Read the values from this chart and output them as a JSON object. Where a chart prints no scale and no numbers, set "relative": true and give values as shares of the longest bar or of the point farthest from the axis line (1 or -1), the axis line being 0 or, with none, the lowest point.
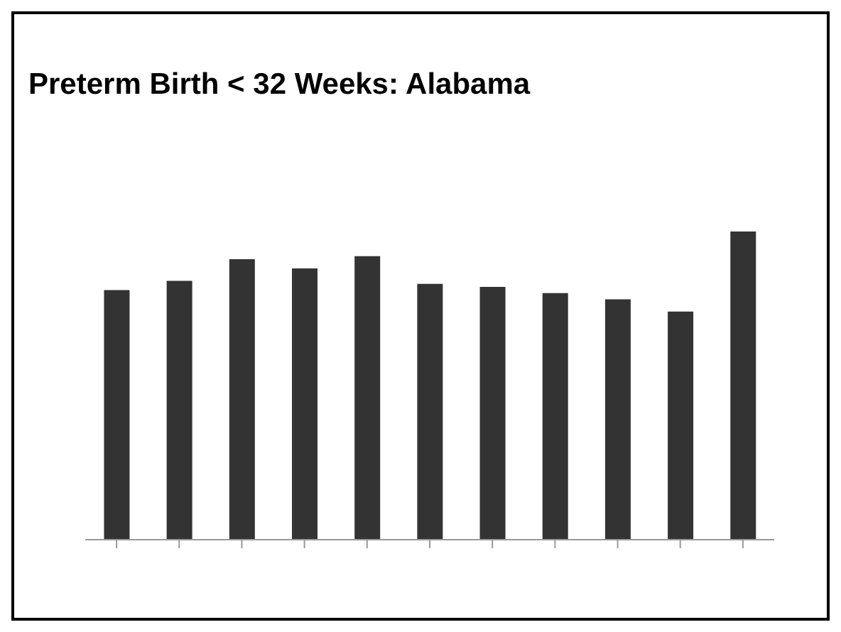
{
  "chart_data": {
    "type": "bar",
    "title": "Preterm Birth < 32 Weeks: Alabama",
    "relative": true,
    "categories": [
      null,
      null,
      null,
      null,
      null,
      null,
      null,
      null,
      null,
      null,
      null
    ],
    "values": [
      0.81,
      0.84,
      0.91,
      0.88,
      0.92,
      0.83,
      0.82,
      0.8,
      0.78,
      0.74,
      1
    ],
    "color": "#333333",
    "grid": false,
    "legend": false
  }
}
